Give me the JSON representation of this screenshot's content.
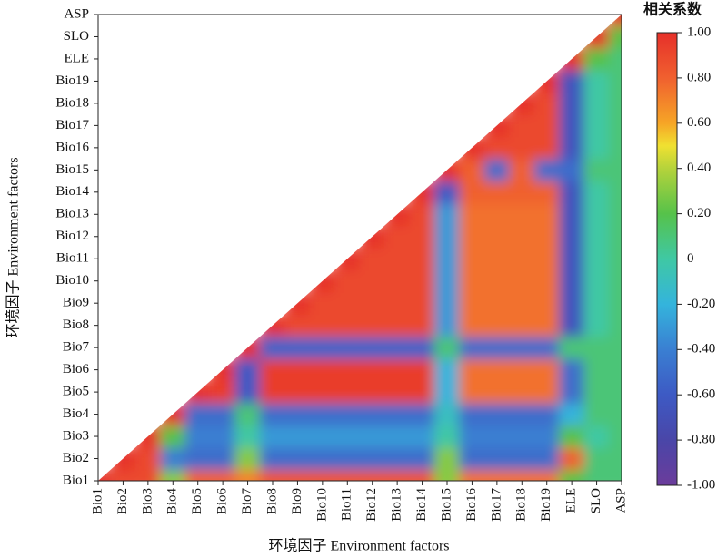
{
  "chart_data": {
    "type": "heatmap",
    "xlabel": "环境因子 Environment factors",
    "ylabel": "环境因子 Environment factors",
    "colorbar_title": "相关系数",
    "categories": [
      "Bio1",
      "Bio2",
      "Bio3",
      "Bio4",
      "Bio5",
      "Bio6",
      "Bio7",
      "Bio8",
      "Bio9",
      "Bio10",
      "Bio11",
      "Bio12",
      "Bio13",
      "Bio14",
      "Bio15",
      "Bio16",
      "Bio17",
      "Bio18",
      "Bio19",
      "ELE",
      "SLO",
      "ASP"
    ],
    "zlim": [
      -1,
      1
    ],
    "zticks": [
      {
        "value": 1,
        "label": "1.00"
      },
      {
        "value": 0.8,
        "label": "0.80"
      },
      {
        "value": 0.6,
        "label": "0.60"
      },
      {
        "value": 0.4,
        "label": "0.40"
      },
      {
        "value": 0.2,
        "label": "0.20"
      },
      0,
      {
        "value": -0.2,
        "label": "-0.20"
      },
      {
        "value": -0.4,
        "label": "-0.40"
      },
      {
        "value": -0.6,
        "label": "-0.60"
      },
      {
        "value": -0.8,
        "label": "-0.80"
      },
      {
        "value": -1,
        "label": "-1.00"
      }
    ],
    "colorscale": [
      {
        "value": -1,
        "color": "#6b3c9b"
      },
      {
        "value": -0.8,
        "color": "#4a46a8"
      },
      {
        "value": -0.6,
        "color": "#3d5ac4"
      },
      {
        "value": -0.4,
        "color": "#3a7fd2"
      },
      {
        "value": -0.2,
        "color": "#34b4dc"
      },
      {
        "value": 0,
        "color": "#3fc8a4"
      },
      {
        "value": 0.2,
        "color": "#56c24a"
      },
      {
        "value": 0.4,
        "color": "#b5d33b"
      },
      {
        "value": 0.5,
        "color": "#f0e131"
      },
      {
        "value": 0.6,
        "color": "#f6a526"
      },
      {
        "value": 0.8,
        "color": "#f0602f"
      },
      {
        "value": 1,
        "color": "#e6302a"
      }
    ],
    "z": [
      [
        1,
        0.9,
        0.9,
        0.3,
        0.8,
        0.8,
        0.7,
        0.85,
        0.85,
        0.85,
        0.85,
        0.85,
        0.85,
        0.85,
        0.3,
        0.75,
        0.75,
        0.75,
        0.75,
        0.2,
        0.1,
        0.1
      ],
      [
        null,
        1,
        0.9,
        -0.4,
        -0.5,
        -0.5,
        0.3,
        -0.5,
        -0.5,
        -0.5,
        -0.5,
        -0.5,
        -0.5,
        -0.5,
        0.3,
        -0.5,
        -0.5,
        -0.5,
        -0.5,
        0.8,
        0.1,
        0.1
      ],
      [
        null,
        null,
        1,
        0.2,
        -0.4,
        -0.4,
        0.0,
        -0.3,
        -0.3,
        -0.3,
        -0.3,
        -0.3,
        -0.3,
        -0.3,
        0.0,
        -0.4,
        -0.4,
        -0.4,
        -0.4,
        0.2,
        0.0,
        0.1
      ],
      [
        null,
        null,
        null,
        1,
        -0.5,
        -0.5,
        0.1,
        -0.5,
        -0.5,
        -0.5,
        -0.5,
        -0.5,
        -0.5,
        -0.5,
        -0.1,
        -0.5,
        -0.5,
        -0.5,
        -0.5,
        -0.2,
        0.1,
        0.1
      ],
      [
        null,
        null,
        null,
        null,
        1,
        0.95,
        -0.6,
        0.95,
        0.95,
        0.95,
        0.95,
        0.95,
        0.95,
        0.95,
        -0.2,
        0.75,
        0.75,
        0.75,
        0.75,
        -0.5,
        0.1,
        0.1
      ],
      [
        null,
        null,
        null,
        null,
        null,
        1,
        -0.6,
        0.95,
        0.95,
        0.95,
        0.95,
        0.95,
        0.95,
        0.95,
        -0.2,
        0.75,
        0.75,
        0.75,
        0.75,
        -0.5,
        0.1,
        0.1
      ],
      [
        null,
        null,
        null,
        null,
        null,
        null,
        1,
        -0.55,
        -0.55,
        -0.55,
        -0.55,
        -0.55,
        -0.55,
        -0.55,
        0.1,
        -0.5,
        -0.5,
        -0.5,
        -0.5,
        0.1,
        0.1,
        0.1
      ],
      [
        null,
        null,
        null,
        null,
        null,
        null,
        null,
        1,
        0.9,
        0.9,
        0.9,
        0.9,
        0.9,
        0.9,
        -0.3,
        0.75,
        0.75,
        0.75,
        0.75,
        -0.65,
        0.0,
        0.1
      ],
      [
        null,
        null,
        null,
        null,
        null,
        null,
        null,
        null,
        1,
        0.9,
        0.9,
        0.9,
        0.9,
        0.9,
        -0.3,
        0.75,
        0.75,
        0.75,
        0.75,
        -0.65,
        0.0,
        0.1
      ],
      [
        null,
        null,
        null,
        null,
        null,
        null,
        null,
        null,
        null,
        1,
        0.9,
        0.9,
        0.9,
        0.9,
        -0.3,
        0.75,
        0.75,
        0.75,
        0.75,
        -0.65,
        0.0,
        0.1
      ],
      [
        null,
        null,
        null,
        null,
        null,
        null,
        null,
        null,
        null,
        null,
        1,
        0.9,
        0.9,
        0.9,
        -0.3,
        0.75,
        0.75,
        0.75,
        0.75,
        -0.65,
        0.0,
        0.1
      ],
      [
        null,
        null,
        null,
        null,
        null,
        null,
        null,
        null,
        null,
        null,
        null,
        1,
        0.9,
        0.9,
        -0.3,
        0.75,
        0.75,
        0.75,
        0.75,
        -0.65,
        0.0,
        0.1
      ],
      [
        null,
        null,
        null,
        null,
        null,
        null,
        null,
        null,
        null,
        null,
        null,
        null,
        1,
        0.9,
        -0.3,
        0.75,
        0.75,
        0.75,
        0.75,
        -0.65,
        0.0,
        0.1
      ],
      [
        null,
        null,
        null,
        null,
        null,
        null,
        null,
        null,
        null,
        null,
        null,
        null,
        null,
        1,
        -0.6,
        0.8,
        0.8,
        0.8,
        0.8,
        -0.65,
        0.0,
        0.1
      ],
      [
        null,
        null,
        null,
        null,
        null,
        null,
        null,
        null,
        null,
        null,
        null,
        null,
        null,
        null,
        1,
        0.8,
        -0.5,
        0.8,
        -0.5,
        -0.5,
        0.1,
        0.1
      ],
      [
        null,
        null,
        null,
        null,
        null,
        null,
        null,
        null,
        null,
        null,
        null,
        null,
        null,
        null,
        null,
        1,
        0.9,
        0.9,
        0.9,
        -0.65,
        0.0,
        0.1
      ],
      [
        null,
        null,
        null,
        null,
        null,
        null,
        null,
        null,
        null,
        null,
        null,
        null,
        null,
        null,
        null,
        null,
        1,
        0.9,
        0.9,
        -0.65,
        0.0,
        0.1
      ],
      [
        null,
        null,
        null,
        null,
        null,
        null,
        null,
        null,
        null,
        null,
        null,
        null,
        null,
        null,
        null,
        null,
        null,
        1,
        0.9,
        -0.65,
        0.0,
        0.1
      ],
      [
        null,
        null,
        null,
        null,
        null,
        null,
        null,
        null,
        null,
        null,
        null,
        null,
        null,
        null,
        null,
        null,
        null,
        null,
        1,
        -0.65,
        0.0,
        0.1
      ],
      [
        null,
        null,
        null,
        null,
        null,
        null,
        null,
        null,
        null,
        null,
        null,
        null,
        null,
        null,
        null,
        null,
        null,
        null,
        null,
        1,
        0.2,
        0.1
      ],
      [
        null,
        null,
        null,
        null,
        null,
        null,
        null,
        null,
        null,
        null,
        null,
        null,
        null,
        null,
        null,
        null,
        null,
        null,
        null,
        null,
        1,
        0.2
      ],
      [
        null,
        null,
        null,
        null,
        null,
        null,
        null,
        null,
        null,
        null,
        null,
        null,
        null,
        null,
        null,
        null,
        null,
        null,
        null,
        null,
        null,
        1
      ]
    ]
  }
}
